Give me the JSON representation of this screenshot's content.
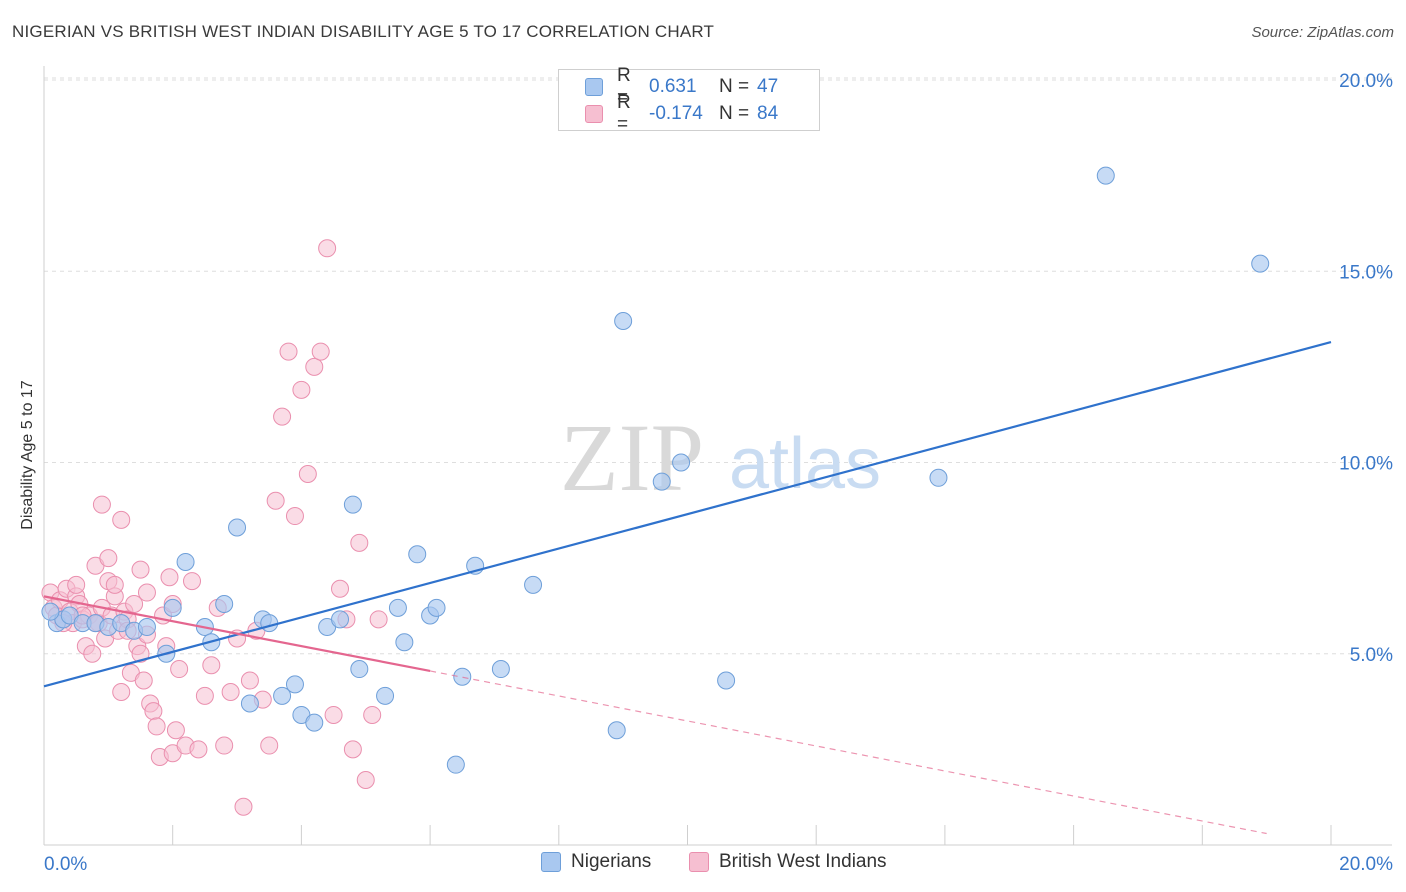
{
  "title": "NIGERIAN VS BRITISH WEST INDIAN DISABILITY AGE 5 TO 17 CORRELATION CHART",
  "source": "Source: ZipAtlas.com",
  "watermark": {
    "zip": "ZIP",
    "atlas": "atlas"
  },
  "legend_top": {
    "rows": [
      {
        "r_label": "R =",
        "r_value": "0.631",
        "n_label": "N =",
        "n_value": "47"
      },
      {
        "r_label": "R =",
        "r_value": "-0.174",
        "n_label": "N =",
        "n_value": "84"
      }
    ]
  },
  "legend_bottom": {
    "series1": "Nigerians",
    "series2": "British West Indians"
  },
  "colors": {
    "blue_fill": "#a9c8f0",
    "blue_stroke": "#6e9fd9",
    "blue_line": "#2f72cc",
    "pink_fill": "#f6bfd1",
    "pink_stroke": "#ea8fae",
    "pink_line": "#e4668f",
    "axis_text": "#3a78c9",
    "grid": "#dedede"
  },
  "chart_data": {
    "type": "scatter",
    "title": "NIGERIAN VS BRITISH WEST INDIAN DISABILITY AGE 5 TO 17 CORRELATION CHART",
    "xlabel": "",
    "ylabel": "Disability Age 5 to 17",
    "xlim": [
      0,
      20
    ],
    "ylim": [
      0,
      20
    ],
    "x_tick_labels": [
      "0.0%",
      "20.0%"
    ],
    "y_tick_labels": [
      "5.0%",
      "10.0%",
      "15.0%",
      "20.0%"
    ],
    "y_ticks": [
      5,
      10,
      15,
      20
    ],
    "series": [
      {
        "name": "Nigerians",
        "r": 0.631,
        "n": 47,
        "trend": {
          "x": [
            0,
            20
          ],
          "y": [
            4.15,
            13.15
          ],
          "style": "solid"
        },
        "points": [
          [
            0.2,
            5.8
          ],
          [
            0.3,
            5.9
          ],
          [
            0.4,
            6.0
          ],
          [
            0.6,
            5.8
          ],
          [
            0.8,
            5.8
          ],
          [
            1.0,
            5.7
          ],
          [
            1.2,
            5.8
          ],
          [
            1.4,
            5.6
          ],
          [
            1.6,
            5.7
          ],
          [
            1.9,
            5.0
          ],
          [
            2.0,
            6.2
          ],
          [
            2.2,
            7.4
          ],
          [
            2.5,
            5.7
          ],
          [
            2.6,
            5.3
          ],
          [
            2.8,
            6.3
          ],
          [
            3.0,
            8.3
          ],
          [
            3.2,
            3.7
          ],
          [
            3.4,
            5.9
          ],
          [
            3.5,
            5.8
          ],
          [
            3.7,
            3.9
          ],
          [
            3.9,
            4.2
          ],
          [
            4.0,
            3.4
          ],
          [
            4.2,
            3.2
          ],
          [
            4.4,
            5.7
          ],
          [
            4.6,
            5.9
          ],
          [
            4.8,
            8.9
          ],
          [
            4.9,
            4.6
          ],
          [
            5.3,
            3.9
          ],
          [
            5.5,
            6.2
          ],
          [
            5.6,
            5.3
          ],
          [
            5.8,
            7.6
          ],
          [
            6.0,
            6.0
          ],
          [
            6.1,
            6.2
          ],
          [
            6.4,
            2.1
          ],
          [
            6.5,
            4.4
          ],
          [
            6.7,
            7.3
          ],
          [
            7.1,
            4.6
          ],
          [
            7.6,
            6.8
          ],
          [
            8.9,
            3.0
          ],
          [
            9.0,
            13.7
          ],
          [
            9.6,
            9.5
          ],
          [
            9.9,
            10.0
          ],
          [
            10.6,
            4.3
          ],
          [
            13.9,
            9.6
          ],
          [
            16.5,
            17.5
          ],
          [
            18.9,
            15.2
          ],
          [
            0.1,
            6.1
          ]
        ]
      },
      {
        "name": "British West Indians",
        "r": -0.174,
        "n": 84,
        "trend": {
          "x": [
            0,
            6.0
          ],
          "y": [
            6.5,
            4.55
          ],
          "dashed_extension": {
            "x": [
              6.0,
              19.0
            ],
            "y": [
              4.55,
              0.3
            ]
          }
        },
        "points": [
          [
            0.1,
            6.6
          ],
          [
            0.15,
            6.2
          ],
          [
            0.2,
            6.0
          ],
          [
            0.25,
            6.4
          ],
          [
            0.3,
            5.9
          ],
          [
            0.35,
            6.7
          ],
          [
            0.4,
            6.1
          ],
          [
            0.45,
            5.8
          ],
          [
            0.5,
            6.5
          ],
          [
            0.55,
            6.3
          ],
          [
            0.6,
            5.9
          ],
          [
            0.65,
            5.2
          ],
          [
            0.7,
            6.0
          ],
          [
            0.75,
            5.0
          ],
          [
            0.8,
            7.3
          ],
          [
            0.85,
            5.8
          ],
          [
            0.9,
            6.2
          ],
          [
            0.95,
            5.4
          ],
          [
            1.0,
            6.9
          ],
          [
            1.05,
            6.0
          ],
          [
            1.1,
            6.5
          ],
          [
            1.15,
            5.6
          ],
          [
            1.2,
            4.0
          ],
          [
            1.25,
            6.1
          ],
          [
            1.3,
            5.9
          ],
          [
            1.35,
            4.5
          ],
          [
            1.4,
            6.3
          ],
          [
            1.45,
            5.2
          ],
          [
            1.5,
            5.0
          ],
          [
            1.55,
            4.3
          ],
          [
            1.6,
            5.5
          ],
          [
            1.65,
            3.7
          ],
          [
            1.7,
            3.5
          ],
          [
            1.75,
            3.1
          ],
          [
            1.8,
            2.3
          ],
          [
            1.85,
            6.0
          ],
          [
            1.9,
            5.2
          ],
          [
            1.95,
            7.0
          ],
          [
            2.0,
            2.4
          ],
          [
            2.05,
            3.0
          ],
          [
            2.1,
            4.6
          ],
          [
            2.2,
            2.6
          ],
          [
            2.3,
            6.9
          ],
          [
            2.4,
            2.5
          ],
          [
            2.5,
            3.9
          ],
          [
            2.6,
            4.7
          ],
          [
            2.7,
            6.2
          ],
          [
            2.8,
            2.6
          ],
          [
            2.9,
            4.0
          ],
          [
            3.0,
            5.4
          ],
          [
            3.1,
            1.0
          ],
          [
            3.2,
            4.3
          ],
          [
            3.3,
            5.6
          ],
          [
            3.4,
            3.8
          ],
          [
            3.5,
            2.6
          ],
          [
            3.6,
            9.0
          ],
          [
            3.7,
            11.2
          ],
          [
            3.8,
            12.9
          ],
          [
            3.9,
            8.6
          ],
          [
            4.0,
            11.9
          ],
          [
            4.1,
            9.7
          ],
          [
            4.2,
            12.5
          ],
          [
            4.3,
            12.9
          ],
          [
            4.4,
            15.6
          ],
          [
            4.5,
            3.4
          ],
          [
            4.6,
            6.7
          ],
          [
            4.7,
            5.9
          ],
          [
            4.8,
            2.5
          ],
          [
            4.9,
            7.9
          ],
          [
            5.0,
            1.7
          ],
          [
            5.1,
            3.4
          ],
          [
            5.2,
            5.9
          ],
          [
            1.0,
            7.5
          ],
          [
            1.2,
            8.5
          ],
          [
            1.1,
            6.8
          ],
          [
            0.9,
            8.9
          ],
          [
            1.5,
            7.2
          ],
          [
            1.6,
            6.6
          ],
          [
            1.3,
            5.6
          ],
          [
            0.8,
            5.8
          ],
          [
            2.0,
            6.3
          ],
          [
            0.5,
            6.8
          ],
          [
            0.3,
            5.8
          ],
          [
            0.6,
            6.0
          ]
        ]
      }
    ]
  }
}
